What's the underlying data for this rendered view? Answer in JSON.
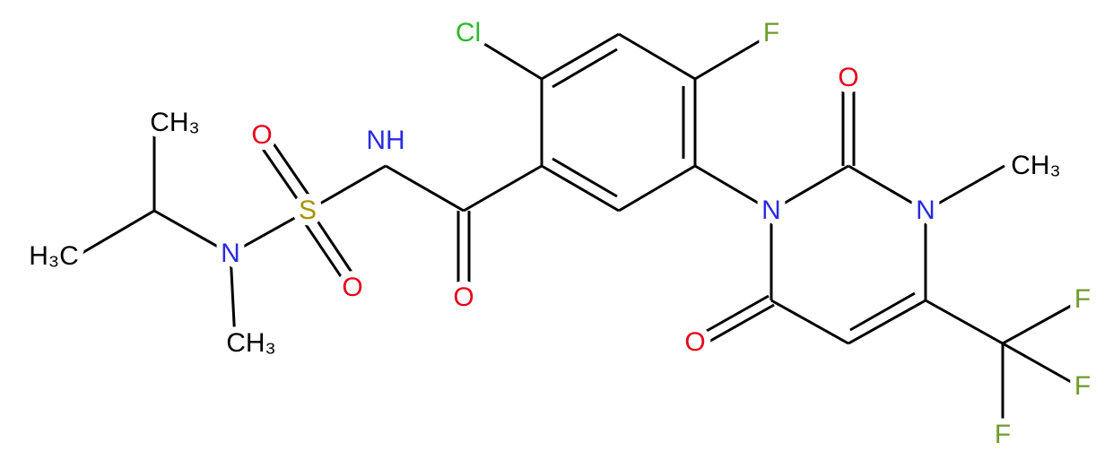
{
  "atoms": [
    {
      "label": "Cl"
    },
    {
      "label": "F"
    },
    {
      "label": "NH"
    },
    {
      "label": "O"
    },
    {
      "label": "S"
    },
    {
      "label": "O"
    },
    {
      "label": "O"
    },
    {
      "label": "N"
    },
    {
      "label": "CH₃"
    },
    {
      "label": "CH₃"
    },
    {
      "label": "H₃C"
    },
    {
      "label": "N"
    },
    {
      "label": "O"
    },
    {
      "label": "N"
    },
    {
      "label": "CH₃"
    },
    {
      "label": "O"
    },
    {
      "label": "F"
    },
    {
      "label": "F"
    },
    {
      "label": "F"
    }
  ]
}
